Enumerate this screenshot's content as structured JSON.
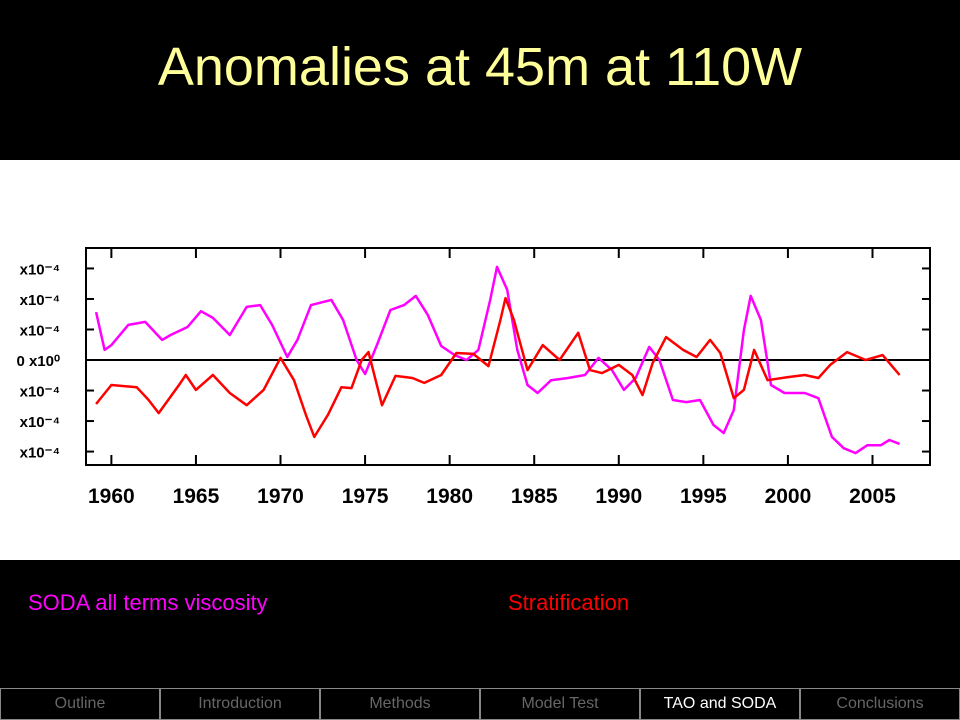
{
  "title": "Anomalies at 45m at 110W",
  "chart_data": {
    "type": "line",
    "xlim": [
      1958.5,
      2008.4
    ],
    "xticks": [
      1960,
      1965,
      1970,
      1975,
      1980,
      1985,
      1990,
      1995,
      2000,
      2005
    ],
    "ylim": [
      -0.000344,
      0.000367
    ],
    "yticks": [
      {
        "value": 0.0003,
        "label": "x10⁻⁴"
      },
      {
        "value": 0.0002,
        "label": "x10⁻⁴"
      },
      {
        "value": 0.0001,
        "label": "x10⁻⁴"
      },
      {
        "value": 0,
        "label": "0 x10⁰"
      },
      {
        "value": -0.0001,
        "label": "x10⁻⁴"
      },
      {
        "value": -0.0002,
        "label": "x10⁻⁴"
      },
      {
        "value": -0.0003,
        "label": "x10⁻⁴"
      }
    ],
    "series": [
      {
        "name": "SODA all terms viscosity",
        "color": "#ff00ff",
        "x": [
          1959.1,
          1959.6,
          1960,
          1961,
          1962,
          1963,
          1963.5,
          1964.5,
          1965.3,
          1966,
          1967,
          1968,
          1968.8,
          1969.5,
          1970.4,
          1971,
          1971.8,
          1973,
          1973.7,
          1974.5,
          1975,
          1975.7,
          1976.5,
          1977.3,
          1978,
          1978.7,
          1979.5,
          1980.3,
          1981,
          1981.7,
          1982.4,
          1982.8,
          1983.4,
          1984,
          1984.6,
          1985.2,
          1986,
          1987,
          1988,
          1988.8,
          1989.6,
          1990.3,
          1991,
          1991.8,
          1992.4,
          1993.2,
          1994,
          1994.8,
          1995.6,
          1996.2,
          1996.8,
          1997.4,
          1997.8,
          1998.4,
          1999,
          1999.8,
          2001,
          2001.8,
          2002.6,
          2003.3,
          2004,
          2004.7,
          2005.5,
          2006,
          2006.6
        ],
        "values": [
          0.000157,
          3.3e-05,
          4.9e-05,
          0.000115,
          0.000125,
          6.6e-05,
          8.2e-05,
          0.000108,
          0.00016,
          0.000138,
          8.2e-05,
          0.000174,
          0.00018,
          0.000115,
          1e-05,
          6.6e-05,
          0.00018,
          0.000197,
          0.000131,
          0,
          -4.6e-05,
          4.9e-05,
          0.000164,
          0.00018,
          0.00021,
          0.000148,
          4.6e-05,
          1.6e-05,
          0,
          3.3e-05,
          0.000197,
          0.000305,
          0.00023,
          3.3e-05,
          -8.2e-05,
          -0.000108,
          -6.6e-05,
          -5.9e-05,
          -4.9e-05,
          7e-06,
          -3.3e-05,
          -9.8e-05,
          -5.9e-05,
          4.3e-05,
          0,
          -0.000131,
          -0.000138,
          -0.000131,
          -0.000213,
          -0.000239,
          -0.000164,
          9.8e-05,
          0.00021,
          0.000131,
          -8.2e-05,
          -0.000108,
          -0.000108,
          -0.000125,
          -0.000252,
          -0.000289,
          -0.000305,
          -0.000279,
          -0.000279,
          -0.000262,
          -0.000275
        ]
      },
      {
        "name": "Stratification",
        "color": "#ff0000",
        "x": [
          1959.1,
          1960,
          1961.5,
          1962.2,
          1962.8,
          1964,
          1964.4,
          1965,
          1966,
          1967,
          1968,
          1969,
          1970,
          1970.8,
          1971.5,
          1972,
          1972.8,
          1973.6,
          1974.2,
          1974.8,
          1975.2,
          1976,
          1976.8,
          1977.8,
          1978.5,
          1979.5,
          1980.4,
          1981.4,
          1982.3,
          1983,
          1983.3,
          1983.8,
          1984.6,
          1985.5,
          1986.5,
          1987.6,
          1988.3,
          1989,
          1990,
          1990.8,
          1991.4,
          1992,
          1992.8,
          1993.8,
          1994.6,
          1995.4,
          1996,
          1996.8,
          1997.4,
          1998,
          1998.8,
          2000,
          2001,
          2001.8,
          2002.5,
          2003.5,
          2004.6,
          2005.6,
          2006.6
        ],
        "values": [
          -0.000144,
          -8.2e-05,
          -8.9e-05,
          -0.000131,
          -0.000174,
          -8.2e-05,
          -4.9e-05,
          -9.8e-05,
          -4.9e-05,
          -0.000108,
          -0.000148,
          -9.8e-05,
          7e-06,
          -6.6e-05,
          -0.00018,
          -0.000252,
          -0.00018,
          -8.9e-05,
          -9.2e-05,
          0,
          2.6e-05,
          -0.000148,
          -5.2e-05,
          -5.9e-05,
          -7.5e-05,
          -4.9e-05,
          2.3e-05,
          2e-05,
          -2e-05,
          0.000131,
          0.000203,
          0.000131,
          -3.3e-05,
          4.9e-05,
          0,
          8.9e-05,
          -3.3e-05,
          -4.3e-05,
          -1.6e-05,
          -4.9e-05,
          -0.000115,
          -1e-05,
          7.5e-05,
          3.3e-05,
          1e-05,
          6.6e-05,
          2.3e-05,
          -0.000125,
          -9.8e-05,
          3.3e-05,
          -6.6e-05,
          -5.6e-05,
          -4.9e-05,
          -5.9e-05,
          -1.6e-05,
          2.6e-05,
          0,
          1.6e-05,
          -4.9e-05
        ]
      }
    ]
  },
  "nav": {
    "tabs": [
      "Outline",
      "Introduction",
      "Methods",
      "Model Test",
      "TAO and SODA",
      "Conclusions"
    ],
    "active": 4
  }
}
